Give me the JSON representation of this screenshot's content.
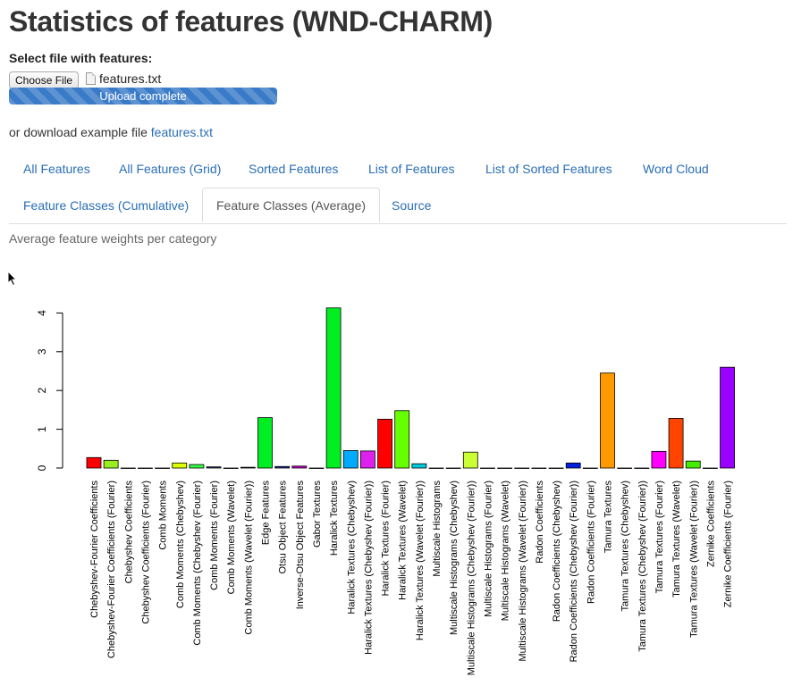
{
  "page": {
    "title": "Statistics of features (WND-CHARM)",
    "file_label": "Select file with features:",
    "choose_button": "Choose File",
    "file_name": "features.txt",
    "upload_status": "Upload complete",
    "upload_progress": 1.0,
    "download_text": "or download example file",
    "download_link": "features.txt",
    "subtitle": "Average feature weights per category"
  },
  "tabs": [
    {
      "label": "All Features",
      "active": false
    },
    {
      "label": "All Features (Grid)",
      "active": false
    },
    {
      "label": "Sorted Features",
      "active": false
    },
    {
      "label": "List of Features",
      "active": false
    },
    {
      "label": "List of Sorted Features",
      "active": false
    },
    {
      "label": "Word Cloud",
      "active": false
    },
    {
      "label": "Feature Classes (Cumulative)",
      "active": false
    },
    {
      "label": "Feature Classes (Average)",
      "active": true
    },
    {
      "label": "Source",
      "active": false
    }
  ],
  "colors": {
    "link": "#2a6eb5",
    "progress": "#3a7bc8"
  },
  "chart_data": {
    "type": "bar",
    "yticks": [
      0,
      1,
      2,
      3,
      4
    ],
    "ylim": [
      0,
      4.2
    ],
    "grid": false,
    "categories": [
      "Chebyshev-Fourier Coefficients",
      "Chebyshev-Fourier Coefficients (Fourier)",
      "Chebyshev Coefficients",
      "Chebyshev Coefficients (Fourier)",
      "Comb Moments",
      "Comb Moments (Chebyshev)",
      "Comb Moments (Chebyshev (Fourier)",
      "Comb Moments (Fourier)",
      "Comb Moments (Wavelet)",
      "Comb Moments (Wavelet (Fourier))",
      "Edge Features",
      "Otsu Object Features",
      "Inverse-Otsu Object Features",
      "Gabor Textures",
      "Haralick Textures",
      "Haralick Textures (Chebyshev)",
      "Haralick Textures (Chebyshev (Fourier))",
      "Haralick Textures (Fourier)",
      "Haralick Textures (Wavelet)",
      "Haralick Textures (Wavelet (Fourier))",
      "Multiscale Histograms",
      "Multiscale Histograms (Chebyshev)",
      "Multiscale Histograms (Chebyshev (Fourier))",
      "Multiscale Histograms (Fourier)",
      "Multiscale Histograms (Wavelet)",
      "Multiscale Histograms (Wavelet (Fourier))",
      "Radon Coefficients",
      "Radon Coefficients (Chebyshev)",
      "Radon Coefficients (Chebyshev (Fourier))",
      "Radon Coefficients (Fourier)",
      "Tamura Textures",
      "Tamura Textures (Chebyshev)",
      "Tamura Textures (Chebyshev (Fourier))",
      "Tamura Textures (Fourier)",
      "Tamura Textures (Wavelet)",
      "Tamura Textures (Wavelet (Fourier))",
      "Zernike Coefficients",
      "Zernike Coefficients (Fourier)"
    ],
    "values": [
      0.27,
      0.2,
      0.0,
      0.0,
      0.0,
      0.13,
      0.09,
      0.03,
      0.0,
      0.02,
      1.3,
      0.04,
      0.05,
      0.0,
      4.13,
      0.45,
      0.44,
      1.26,
      1.48,
      0.11,
      0.0,
      0.0,
      0.41,
      0.0,
      0.0,
      0.0,
      0.0,
      0.0,
      0.13,
      0.0,
      2.45,
      0.0,
      0.0,
      0.43,
      1.28,
      0.18,
      0.0,
      2.6
    ],
    "bar_colors": [
      "#ff0000",
      "#99ee22",
      "#ff8800",
      "#ffcc00",
      "#ffdd00",
      "#ddff00",
      "#33ff44",
      "#223388",
      "#332288",
      "#226655",
      "#00ee22",
      "#223399",
      "#cc00cc",
      "#eeee00",
      "#00ee22",
      "#00aaff",
      "#dd22ee",
      "#ff0000",
      "#66ff00",
      "#00ccdd",
      "#aa22ee",
      "#ff9900",
      "#ccff33",
      "#22ddaa",
      "#ff00aa",
      "#ddaa00",
      "#ff4400",
      "#6600aa",
      "#0022dd",
      "#99ff00",
      "#ff9900",
      "#00ffcc",
      "#ff66aa",
      "#ff00ff",
      "#ff4400",
      "#44ee00",
      "#22dd44",
      "#9900ff"
    ]
  }
}
